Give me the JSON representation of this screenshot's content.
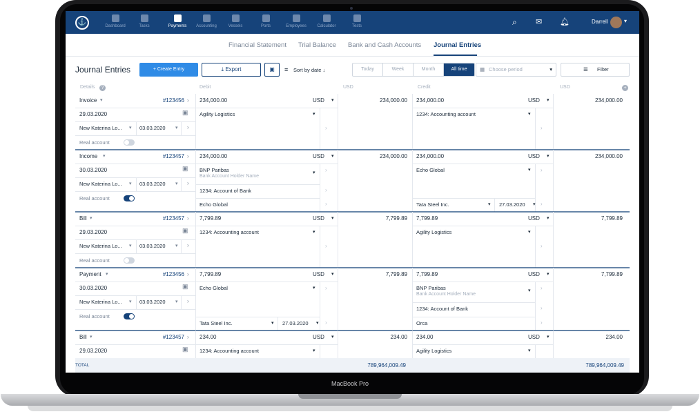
{
  "device": {
    "label": "MacBook Pro"
  },
  "nav": {
    "items": [
      {
        "label": "Dashboard",
        "active": false
      },
      {
        "label": "Tasks",
        "active": false
      },
      {
        "label": "Payments",
        "active": true
      },
      {
        "label": "Accounting",
        "active": false
      },
      {
        "label": "Vessels",
        "active": false
      },
      {
        "label": "Ports",
        "active": false
      },
      {
        "label": "Employees",
        "active": false
      },
      {
        "label": "Calculator",
        "active": false
      },
      {
        "label": "Tests",
        "active": false
      }
    ],
    "user": "Darrell"
  },
  "tabs": [
    "Financial Statement",
    "Trial Balance",
    "Bank and Cash Accounts",
    "Journal Entries"
  ],
  "toolbar": {
    "title": "Journal Entries",
    "create": "+ Create Entry",
    "export": "Export",
    "sort": "Sort by date",
    "periods": [
      "Today",
      "Week",
      "Month",
      "All time"
    ],
    "period_placeholder": "Choose period",
    "filter": "Filter"
  },
  "headers": {
    "details": "Details",
    "debit": "Debit",
    "usd1": "USD",
    "credit": "Credit",
    "usd2": "USD"
  },
  "total": {
    "label": "TOTAL",
    "debit": "789,964,009.49",
    "credit": "789,964,009.49"
  },
  "entries": [
    {
      "type": "Invoice",
      "number": "#123456",
      "date": "29.03.2020",
      "vendor": "New Katerina Lo...",
      "vdate": "03.03.2020",
      "real": "Real account",
      "real_on": false,
      "debit_amount": "234,000.00",
      "debit_cur": "USD",
      "debit_total": "234,000.00",
      "debit_line1": "Agility Logistics",
      "credit_amount": "234,000.00",
      "credit_cur": "USD",
      "credit_total": "234,000.00",
      "credit_line1": "1234: Accounting account"
    },
    {
      "type": "Income",
      "number": "#123457",
      "date": "30.03.2020",
      "vendor": "New Katerina Lo...",
      "vdate": "03.03.2020",
      "real": "Real account",
      "real_on": true,
      "debit_amount": "234,000.00",
      "debit_cur": "USD",
      "debit_total": "234,000.00",
      "debit_line1": "BNP Paribas",
      "debit_line1_sub": "Bank Account Holder Name",
      "debit_line2": "1234: Account of Bank",
      "debit_line3": "Echo Global",
      "credit_amount": "234,000.00",
      "credit_cur": "USD",
      "credit_total": "234,000.00",
      "credit_line1": "Echo Global",
      "credit_line3": "Tata Steel Inc.",
      "credit_line3_date": "27.03.2020"
    },
    {
      "type": "Bill",
      "number": "#123457",
      "date": "29.03.2020",
      "vendor": "New Katerina Lo...",
      "vdate": "03.03.2020",
      "real": "Real account",
      "real_on": false,
      "debit_amount": "7,799.89",
      "debit_cur": "USD",
      "debit_total": "7,799.89",
      "debit_line1": "1234: Accounting account",
      "credit_amount": "7,799.89",
      "credit_cur": "USD",
      "credit_total": "7,799.89",
      "credit_line1": "Agility Logistics"
    },
    {
      "type": "Payment",
      "number": "#123456",
      "date": "30.03.2020",
      "vendor": "New Katerina Lo...",
      "vdate": "03.03.2020",
      "real": "Real account",
      "real_on": true,
      "debit_amount": "7,799.89",
      "debit_cur": "USD",
      "debit_total": "7,799.89",
      "debit_line1": "Echo Global",
      "debit_line3": "Tata Steel Inc.",
      "debit_line3_date": "27.03.2020",
      "credit_amount": "7,799.89",
      "credit_cur": "USD",
      "credit_total": "7,799.89",
      "credit_line1": "BNP Paribas",
      "credit_line1_sub": "Bank Account Holder Name",
      "credit_line2": "1234: Account of Bank",
      "credit_line3": "Orca"
    },
    {
      "type": "Bill",
      "number": "#123457",
      "date": "29.03.2020",
      "debit_amount": "234.00",
      "debit_cur": "USD",
      "debit_total": "234.00",
      "debit_line1": "1234: Accounting account",
      "credit_amount": "234.00",
      "credit_cur": "USD",
      "credit_total": "234.00",
      "credit_line1": "Agility Logistics"
    }
  ]
}
